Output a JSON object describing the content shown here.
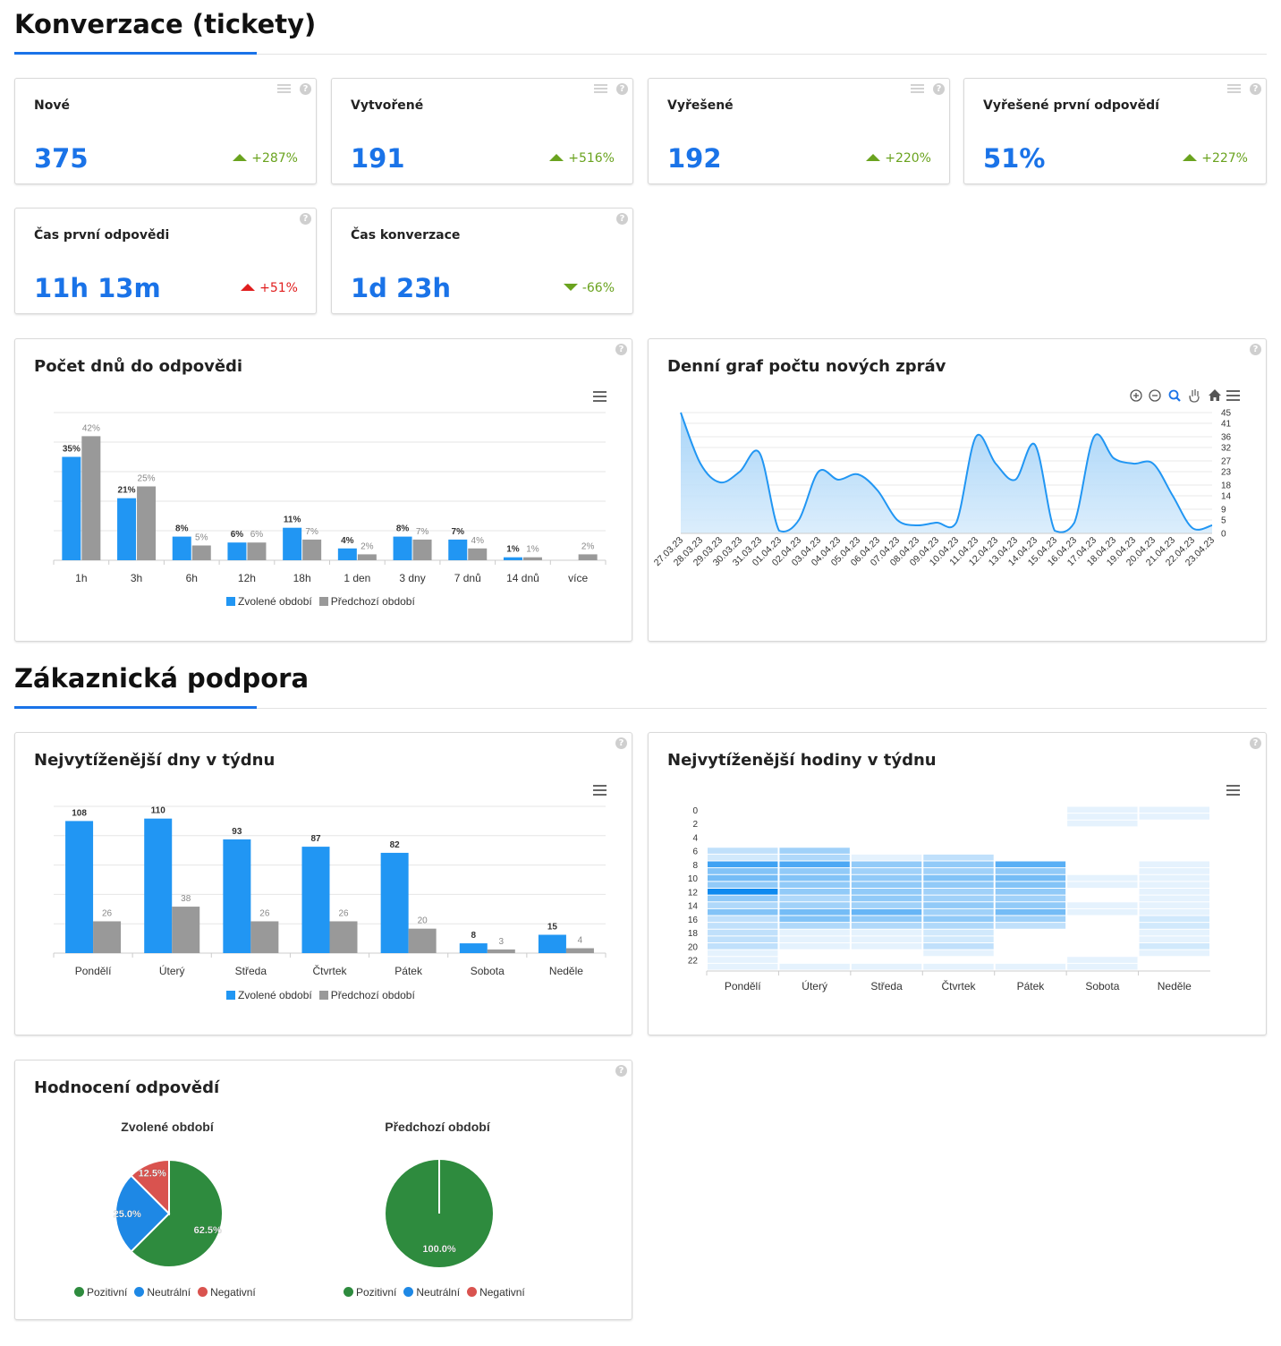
{
  "sections": {
    "conversion": "Konverzace (tickety)",
    "support": "Zákaznická podpora"
  },
  "kpi": [
    {
      "label": "Nové",
      "value": "375",
      "delta": "+287%"
    },
    {
      "label": "Vytvořené",
      "value": "191",
      "delta": "+516%"
    },
    {
      "label": "Vyřešené",
      "value": "192",
      "delta": "+220%"
    },
    {
      "label": "Vyřešené první odpovědí",
      "value": "51%",
      "delta": "+227%"
    },
    {
      "label": "Čas první odpovědi",
      "value": "11h 13m",
      "delta": "+51%"
    },
    {
      "label": "Čas konverzace",
      "value": "1d 23h",
      "delta": "-66%"
    }
  ],
  "colors": {
    "accent": "#1a73e8",
    "series_current": "#2196f3",
    "series_previous": "#999999",
    "positive": "#2e8b3e",
    "neutral": "#1e88e5",
    "negative": "#d9534f",
    "up_good": "#6aa31f",
    "up_bad": "#e01e1e"
  },
  "icons": {
    "help": "question-circle-icon",
    "list": "list-icon",
    "menu": "hamburger-menu-icon"
  },
  "panels": {
    "response_days": "Počet dnů do odpovědi",
    "daily_messages": "Denní graf počtu nových zpráv",
    "busiest_days": "Nejvytíženější dny v týdnu",
    "busiest_hours": "Nejvytíženější hodiny v týdnu",
    "ratings": "Hodnocení odpovědí"
  },
  "help_glyph": "?",
  "chart_data": [
    {
      "type": "bar",
      "title": "Počet dnů do odpovědi",
      "categories": [
        "1h",
        "3h",
        "6h",
        "12h",
        "18h",
        "1 den",
        "3 dny",
        "7 dnů",
        "14 dnů",
        "více"
      ],
      "series": [
        {
          "name": "Zvolené období",
          "values": [
            35,
            21,
            8,
            6,
            11,
            4,
            8,
            7,
            1,
            0
          ],
          "labels": [
            "35%",
            "21%",
            "8%",
            "6%",
            "11%",
            "4%",
            "8%",
            "7%",
            "1%",
            ""
          ]
        },
        {
          "name": "Předchozí období",
          "values": [
            42,
            25,
            5,
            6,
            7,
            2,
            7,
            4,
            1,
            2
          ],
          "labels": [
            "42%",
            "25%",
            "5%",
            "6%",
            "7%",
            "2%",
            "7%",
            "4%",
            "1%",
            "2%"
          ]
        }
      ],
      "ylim": [
        0,
        50
      ],
      "grid": true,
      "legend": "bottom"
    },
    {
      "type": "area",
      "title": "Denní graf počtu nových zpráv",
      "x": [
        "27.03.23",
        "28.03.23",
        "29.03.23",
        "30.03.23",
        "31.03.23",
        "01.04.23",
        "02.04.23",
        "03.04.23",
        "04.04.23",
        "05.04.23",
        "06.04.23",
        "07.04.23",
        "08.04.23",
        "09.04.23",
        "10.04.23",
        "11.04.23",
        "12.04.23",
        "13.04.23",
        "14.04.23",
        "15.04.23",
        "16.04.23",
        "17.04.23",
        "18.04.23",
        "19.04.23",
        "20.04.23",
        "21.04.23",
        "22.04.23",
        "23.04.23"
      ],
      "y": [
        45,
        26,
        19,
        23,
        30,
        1,
        5,
        23,
        20,
        22,
        16,
        5,
        3,
        4,
        4,
        36,
        26,
        20,
        33,
        1,
        4,
        36,
        28,
        26,
        26,
        14,
        2,
        3
      ],
      "yticks": [
        0,
        5,
        9,
        14,
        18,
        23,
        27,
        32,
        36,
        41,
        45
      ],
      "ylim": [
        0,
        45
      ],
      "y_axis_side": "right",
      "toolbar": [
        "zoom-in-icon",
        "zoom-out-icon",
        "magnifier-icon",
        "pan-hand-icon",
        "home-icon",
        "hamburger-menu-icon"
      ],
      "grid": true
    },
    {
      "type": "bar",
      "title": "Nejvytíženější dny v týdnu",
      "categories": [
        "Pondělí",
        "Úterý",
        "Středa",
        "Čtvrtek",
        "Pátek",
        "Sobota",
        "Neděle"
      ],
      "series": [
        {
          "name": "Zvolené období",
          "values": [
            108,
            110,
            93,
            87,
            82,
            8,
            15
          ]
        },
        {
          "name": "Předchozí období",
          "values": [
            26,
            38,
            26,
            26,
            20,
            3,
            4
          ]
        }
      ],
      "ylim": [
        0,
        120
      ],
      "grid": true,
      "legend": "bottom"
    },
    {
      "type": "heatmap",
      "title": "Nejvytíženější hodiny v týdnu",
      "columns": [
        "Pondělí",
        "Úterý",
        "Středa",
        "Čtvrtek",
        "Pátek",
        "Sobota",
        "Neděle"
      ],
      "row_labels": [
        "0",
        "2",
        "4",
        "6",
        "8",
        "10",
        "12",
        "14",
        "16",
        "18",
        "20",
        "22"
      ],
      "rows": [
        0,
        1,
        2,
        3,
        4,
        5,
        6,
        7,
        8,
        9,
        10,
        11,
        12,
        13,
        14,
        15,
        16,
        17,
        18,
        19,
        20,
        21,
        22,
        23
      ],
      "values": [
        [
          0,
          0,
          0,
          0,
          0,
          1,
          1
        ],
        [
          0,
          0,
          0,
          0,
          0,
          1,
          1
        ],
        [
          0,
          0,
          0,
          0,
          0,
          1,
          0
        ],
        [
          0,
          0,
          0,
          0,
          0,
          0,
          0
        ],
        [
          0,
          0,
          0,
          0,
          0,
          0,
          0
        ],
        [
          0,
          0,
          0,
          0,
          0,
          0,
          0
        ],
        [
          3,
          5,
          0,
          0,
          0,
          0,
          0
        ],
        [
          2,
          4,
          1,
          3,
          0,
          0,
          0
        ],
        [
          12,
          11,
          6,
          6,
          10,
          0,
          1
        ],
        [
          7,
          6,
          5,
          5,
          6,
          0,
          1
        ],
        [
          8,
          7,
          6,
          7,
          8,
          1,
          1
        ],
        [
          6,
          6,
          6,
          6,
          7,
          1,
          1
        ],
        [
          16,
          6,
          6,
          5,
          6,
          0,
          1
        ],
        [
          6,
          4,
          6,
          5,
          5,
          0,
          1
        ],
        [
          4,
          5,
          5,
          6,
          6,
          1,
          1
        ],
        [
          7,
          8,
          9,
          5,
          8,
          1,
          1
        ],
        [
          3,
          7,
          6,
          6,
          5,
          0,
          2
        ],
        [
          3,
          4,
          4,
          4,
          3,
          0,
          2
        ],
        [
          3,
          1,
          1,
          2,
          0,
          0,
          1
        ],
        [
          3,
          1,
          1,
          2,
          0,
          0,
          1
        ],
        [
          3,
          1,
          1,
          3,
          0,
          0,
          2
        ],
        [
          1,
          0,
          0,
          1,
          0,
          0,
          1
        ],
        [
          1,
          0,
          0,
          0,
          0,
          1,
          0
        ],
        [
          1,
          1,
          1,
          1,
          1,
          1,
          0
        ]
      ],
      "color_low": "#ffffff",
      "color_high": "#0d8af0"
    },
    {
      "type": "pie",
      "title": "Zvolené období",
      "categories": [
        "Pozitivní",
        "Neutrální",
        "Negativní"
      ],
      "values": [
        62.5,
        25.0,
        12.5
      ],
      "labels": [
        "62.5%",
        "25.0%",
        "12.5%"
      ],
      "legend": "bottom"
    },
    {
      "type": "pie",
      "title": "Předchozí období",
      "categories": [
        "Pozitivní",
        "Neutrální",
        "Negativní"
      ],
      "values": [
        100.0,
        0,
        0
      ],
      "labels": [
        "100.0%",
        "",
        ""
      ],
      "legend": "bottom"
    }
  ]
}
